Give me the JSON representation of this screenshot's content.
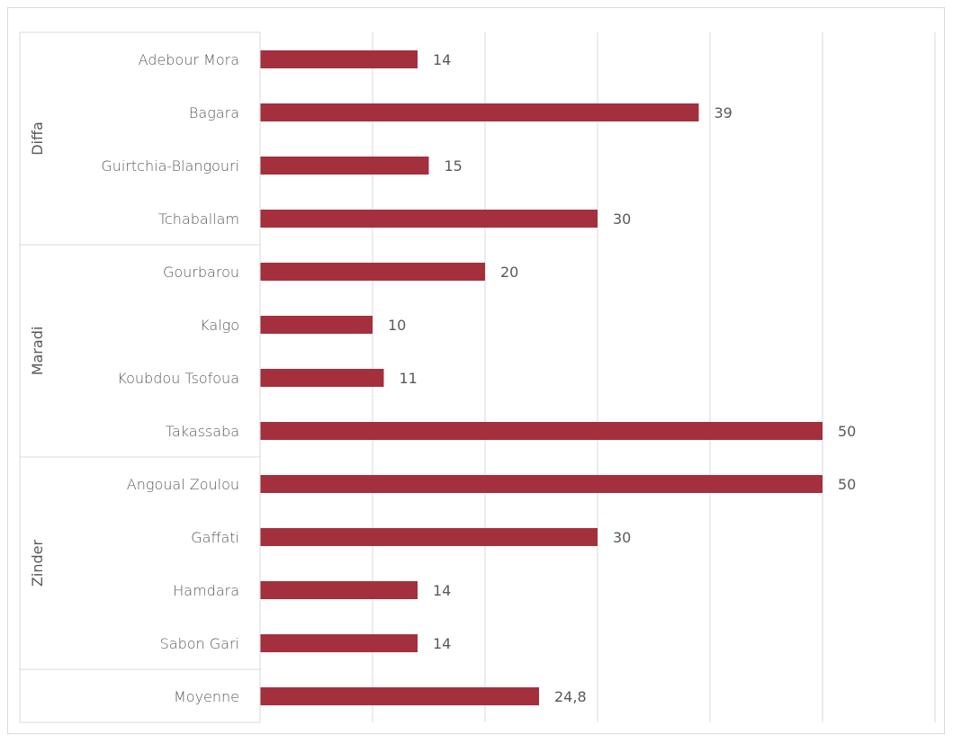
{
  "chart_data": {
    "type": "bar",
    "orientation": "horizontal",
    "title": "",
    "xlabel": "",
    "ylabel": "",
    "xlim": [
      0,
      60
    ],
    "x_ticks": [
      0,
      10,
      20,
      30,
      40,
      50,
      60
    ],
    "show_x_tick_labels": false,
    "grid": true,
    "legend": "none",
    "bar_color": "#a4303d",
    "groups": [
      {
        "name": "Diffa",
        "count": 4
      },
      {
        "name": "Maradi",
        "count": 4
      },
      {
        "name": "Zinder",
        "count": 4
      },
      {
        "name": "",
        "count": 1
      }
    ],
    "categories": [
      "Adebour Mora",
      "Bagara",
      "Guirtchia-Blangouri",
      "Tchaballam",
      "Gourbarou",
      "Kalgo",
      "Koubdou Tsofoua",
      "Takassaba",
      "Angoual Zoulou",
      "Gaffati",
      "Hamdara",
      "Sabon Gari",
      "Moyenne"
    ],
    "values": [
      14,
      39,
      15,
      30,
      20,
      10,
      11,
      50,
      50,
      30,
      14,
      14,
      24.8
    ],
    "data_labels": [
      "14",
      "39",
      "15",
      "30",
      "20",
      "10",
      "11",
      "50",
      "50",
      "30",
      "14",
      "14",
      "24,8"
    ]
  }
}
